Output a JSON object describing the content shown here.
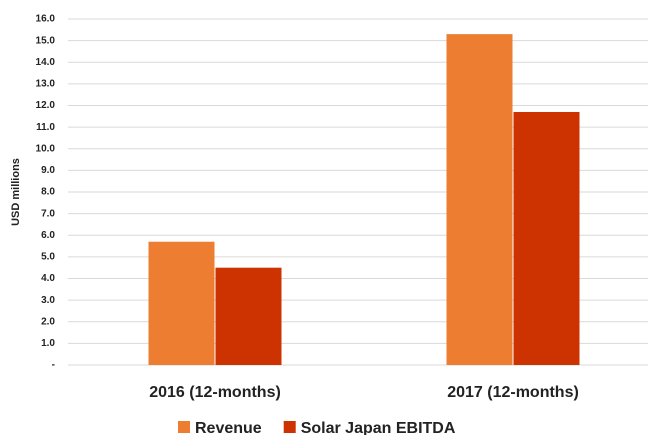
{
  "chart_data": {
    "type": "bar",
    "y_label": "USD millions",
    "categories": [
      "2016 (12-months)",
      "2017 (12-months)"
    ],
    "series": [
      {
        "name": "Revenue",
        "color": "#ed7d31",
        "values": [
          5.7,
          15.3
        ]
      },
      {
        "name": "Solar Japan EBITDA",
        "color": "#cc3300",
        "values": [
          4.5,
          11.7
        ]
      }
    ],
    "ylim": [
      0,
      16
    ],
    "yticks": [
      {
        "value": 0,
        "label": "-"
      },
      {
        "value": 1,
        "label": "1.0"
      },
      {
        "value": 2,
        "label": "2.0"
      },
      {
        "value": 3,
        "label": "3.0"
      },
      {
        "value": 4,
        "label": "4.0"
      },
      {
        "value": 5,
        "label": "5.0"
      },
      {
        "value": 6,
        "label": "6.0"
      },
      {
        "value": 7,
        "label": "7.0"
      },
      {
        "value": 8,
        "label": "8.0"
      },
      {
        "value": 9,
        "label": "9.0"
      },
      {
        "value": 10,
        "label": "10.0"
      },
      {
        "value": 11,
        "label": "11.0"
      },
      {
        "value": 12,
        "label": "12.0"
      },
      {
        "value": 13,
        "label": "13.0"
      },
      {
        "value": 14,
        "label": "14.0"
      },
      {
        "value": 15,
        "label": "15.0"
      },
      {
        "value": 16,
        "label": "16.0"
      }
    ],
    "grid": true,
    "legend": "bottom"
  }
}
